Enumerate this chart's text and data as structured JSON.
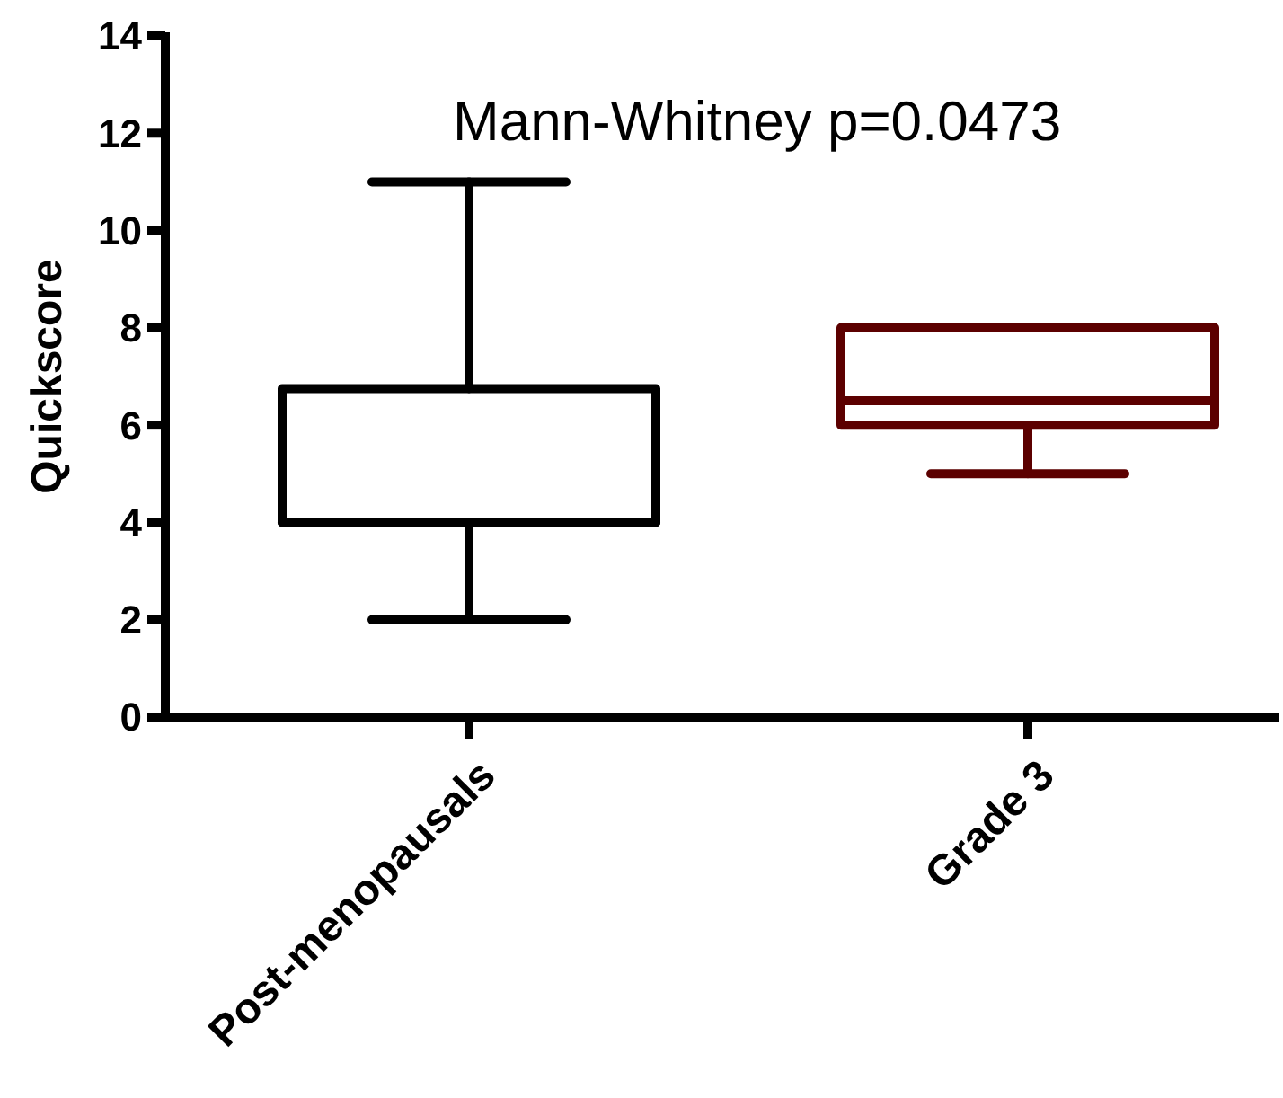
{
  "chart_data": {
    "type": "box",
    "ylabel": "Quickscore",
    "categories": [
      "Post-menopausals",
      "Grade 3"
    ],
    "boxes": [
      {
        "low": 2,
        "q1": 4,
        "median": 4,
        "q3": 6.75,
        "high": 11
      },
      {
        "low": 5,
        "q1": 6,
        "median": 6.5,
        "q3": 8,
        "high": 8
      }
    ],
    "colors": [
      "#000000",
      "#5c0000"
    ],
    "ylim": [
      0,
      14
    ],
    "yticks": [
      0,
      2,
      4,
      6,
      8,
      10,
      12,
      14
    ],
    "annotations": [
      "Mann-Whitney p=0.0473"
    ],
    "grid": false
  }
}
